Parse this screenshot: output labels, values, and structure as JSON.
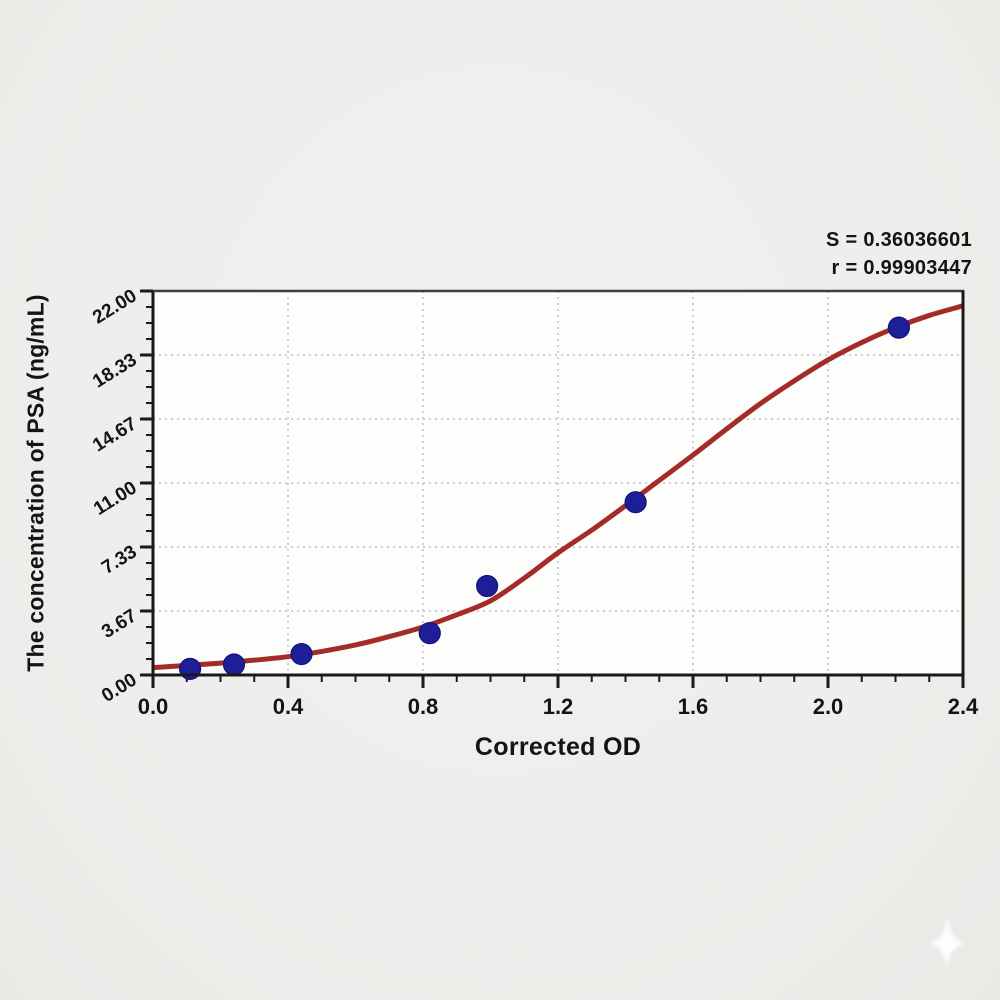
{
  "chart_data": {
    "type": "scatter",
    "title": "",
    "xlabel": "Corrected OD",
    "ylabel": "The concentration of PSA (ng/mL)",
    "xlim": [
      0.0,
      2.4
    ],
    "ylim": [
      0.0,
      22.0
    ],
    "x_tick_labels": [
      "0.0",
      "0.4",
      "0.8",
      "1.2",
      "1.6",
      "2.0",
      "2.4"
    ],
    "x_tick_values": [
      0.0,
      0.4,
      0.8,
      1.2,
      1.6,
      2.0,
      2.4
    ],
    "x_minor_step": 0.1,
    "y_tick_labels": [
      "0.00",
      "3.67",
      "7.33",
      "11.00",
      "14.67",
      "18.33",
      "22.00"
    ],
    "y_tick_values": [
      0.0,
      3.667,
      7.333,
      11.0,
      14.667,
      18.333,
      22.0
    ],
    "y_minor_divisions": 4,
    "grid": {
      "style": "dotted",
      "at": "major-ticks",
      "color": "#bdbdbd"
    },
    "legend_position": "none",
    "annotations": [
      "S = 0.36036601",
      "r = 0.99903447"
    ],
    "stats": {
      "S": 0.36036601,
      "r": 0.99903447
    },
    "series": [
      {
        "name": "standard-points",
        "type": "scatter",
        "color": "#1e1e96",
        "points": [
          [
            0.11,
            0.35
          ],
          [
            0.24,
            0.6
          ],
          [
            0.44,
            1.2
          ],
          [
            0.82,
            2.4
          ],
          [
            0.99,
            5.1
          ],
          [
            1.43,
            9.9
          ],
          [
            2.21,
            19.9
          ]
        ]
      },
      {
        "name": "4pl-fit-curve",
        "type": "line",
        "color": "#a42c28",
        "points": [
          [
            0.0,
            0.42
          ],
          [
            0.1,
            0.55
          ],
          [
            0.2,
            0.68
          ],
          [
            0.3,
            0.85
          ],
          [
            0.4,
            1.05
          ],
          [
            0.5,
            1.35
          ],
          [
            0.6,
            1.72
          ],
          [
            0.7,
            2.2
          ],
          [
            0.8,
            2.75
          ],
          [
            0.9,
            3.45
          ],
          [
            1.0,
            4.25
          ],
          [
            1.1,
            5.55
          ],
          [
            1.2,
            7.0
          ],
          [
            1.3,
            8.3
          ],
          [
            1.4,
            9.7
          ],
          [
            1.5,
            11.15
          ],
          [
            1.6,
            12.6
          ],
          [
            1.7,
            14.1
          ],
          [
            1.8,
            15.55
          ],
          [
            1.9,
            16.85
          ],
          [
            2.0,
            18.05
          ],
          [
            2.1,
            19.05
          ],
          [
            2.2,
            19.9
          ],
          [
            2.3,
            20.6
          ],
          [
            2.4,
            21.15
          ]
        ]
      }
    ],
    "colors": {
      "curve": "#a42c28",
      "points": "#1e1e96",
      "point_edge": "#12127a",
      "axis": "#1a1a1a",
      "top_border": "#3f3f3f",
      "grid": "#bdbdbd",
      "plot_bg": "#fdfdfc",
      "page_bg": "#efeeec",
      "text": "#141414"
    }
  },
  "watermark": {
    "icon": "sparkle"
  }
}
